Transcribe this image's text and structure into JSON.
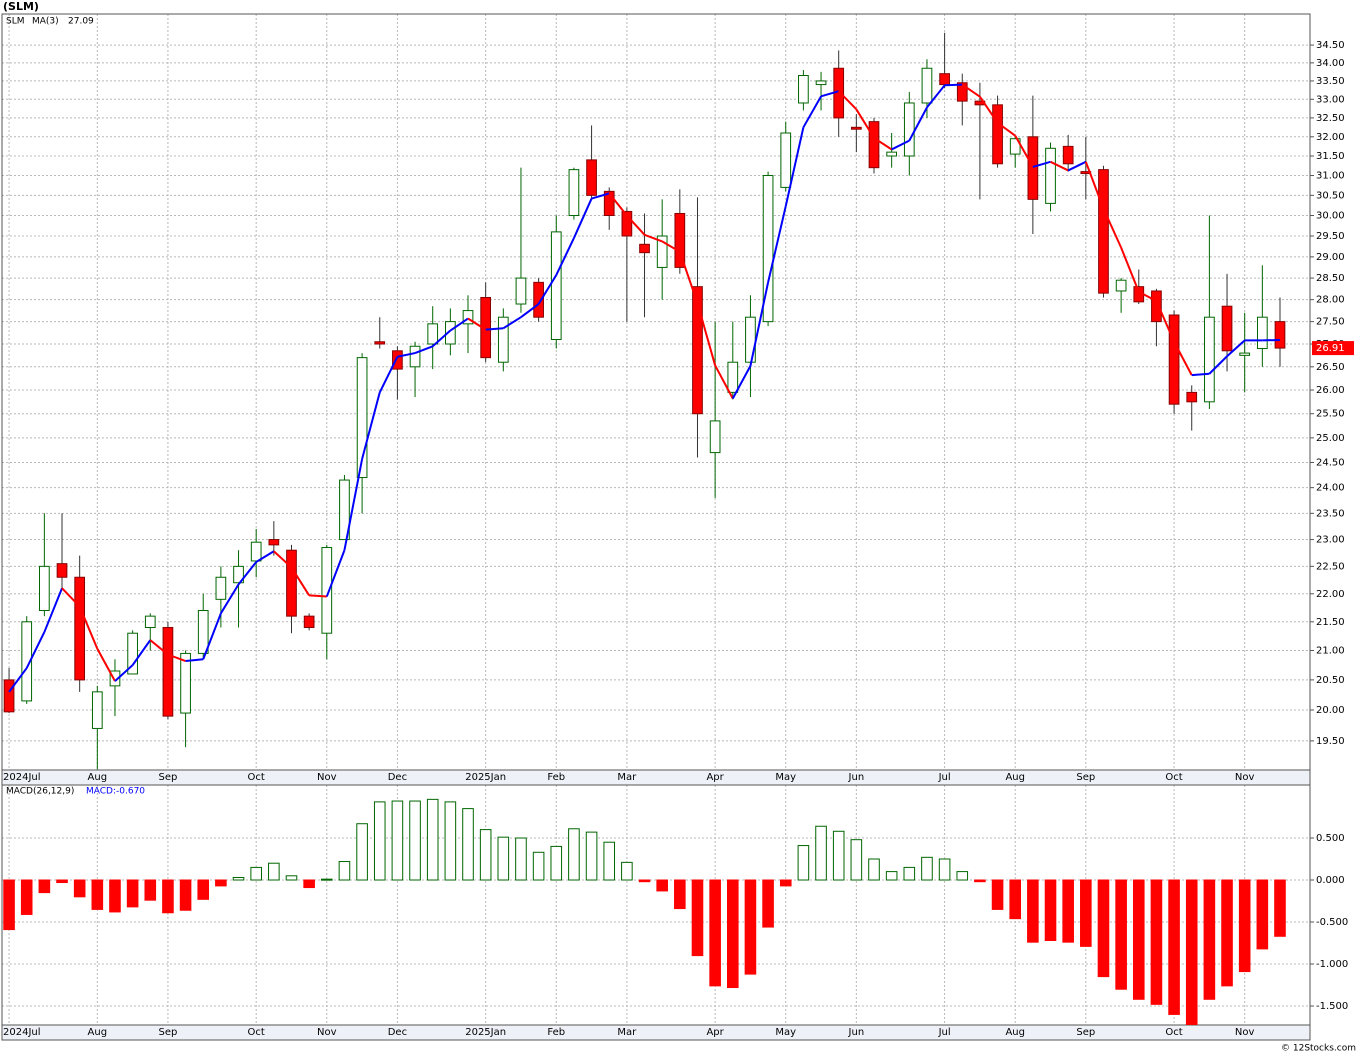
{
  "chart_data": [
    {
      "type": "candlestick",
      "title": "(SLM)",
      "log_scale": true,
      "grid": true,
      "up_color": "#006600",
      "down_color": "#ff0000",
      "xlim": [
        -0.4,
        73.7
      ],
      "xticks": [
        {
          "value": 0,
          "label": "2024Jul"
        },
        {
          "value": 5,
          "label": "Aug"
        },
        {
          "value": 9,
          "label": "Sep"
        },
        {
          "value": 14,
          "label": "Oct"
        },
        {
          "value": 18,
          "label": "Nov"
        },
        {
          "value": 22,
          "label": "Dec"
        },
        {
          "value": 27,
          "label": "2025Jan"
        },
        {
          "value": 31,
          "label": "Feb"
        },
        {
          "value": 35,
          "label": "Mar"
        },
        {
          "value": 40,
          "label": "Apr"
        },
        {
          "value": 44,
          "label": "May"
        },
        {
          "value": 48,
          "label": "Jun"
        },
        {
          "value": 53,
          "label": "Jul"
        },
        {
          "value": 57,
          "label": "Aug"
        },
        {
          "value": 61,
          "label": "Sep"
        },
        {
          "value": 66,
          "label": "Oct"
        },
        {
          "value": 70,
          "label": "Nov"
        }
      ],
      "ylim": [
        19.04,
        35.39
      ],
      "yticks": [
        {
          "value": 19.5,
          "label": "19.50"
        },
        {
          "value": 20,
          "label": "20.00"
        },
        {
          "value": 20.5,
          "label": "20.50"
        },
        {
          "value": 21,
          "label": "21.00"
        },
        {
          "value": 21.5,
          "label": "21.50"
        },
        {
          "value": 22,
          "label": "22.00"
        },
        {
          "value": 22.5,
          "label": "22.50"
        },
        {
          "value": 23,
          "label": "23.00"
        },
        {
          "value": 23.5,
          "label": "23.50"
        },
        {
          "value": 24,
          "label": "24.00"
        },
        {
          "value": 24.5,
          "label": "24.50"
        },
        {
          "value": 25,
          "label": "25.00"
        },
        {
          "value": 25.5,
          "label": "25.50"
        },
        {
          "value": 26,
          "label": "26.00"
        },
        {
          "value": 26.5,
          "label": "26.50"
        },
        {
          "value": 27,
          "label": "27.00"
        },
        {
          "value": 27.5,
          "label": "27.50"
        },
        {
          "value": 28,
          "label": "28.00"
        },
        {
          "value": 28.5,
          "label": "28.50"
        },
        {
          "value": 29,
          "label": "29.00"
        },
        {
          "value": 29.5,
          "label": "29.50"
        },
        {
          "value": 30,
          "label": "30.00"
        },
        {
          "value": 30.5,
          "label": "30.50"
        },
        {
          "value": 31,
          "label": "31.00"
        },
        {
          "value": 31.5,
          "label": "31.50"
        },
        {
          "value": 32,
          "label": "32.00"
        },
        {
          "value": 32.5,
          "label": "32.50"
        },
        {
          "value": 33,
          "label": "33.00"
        },
        {
          "value": 33.5,
          "label": "33.50"
        },
        {
          "value": 34,
          "label": "34.00"
        },
        {
          "value": 34.5,
          "label": "34.50"
        }
      ],
      "series": [
        {
          "name": "SLM",
          "open": [
            20.5,
            20.15,
            21.7,
            22.55,
            22.3,
            19.7,
            20.4,
            20.6,
            21.4,
            21.4,
            19.95,
            20.95,
            21.9,
            22.2,
            22.6,
            23.0,
            22.8,
            21.6,
            21.3,
            23.0,
            24.2,
            27.05,
            26.85,
            26.5,
            27.0,
            27.0,
            27.45,
            28.05,
            26.6,
            27.9,
            28.4,
            27.1,
            30.0,
            31.4,
            30.6,
            30.1,
            29.3,
            28.75,
            30.05,
            28.3,
            24.7,
            25.95,
            26.6,
            27.5,
            30.7,
            32.9,
            33.4,
            33.85,
            32.25,
            32.4,
            31.5,
            31.5,
            32.9,
            33.7,
            33.45,
            32.95,
            32.85,
            31.55,
            32.0,
            30.3,
            31.75,
            31.1,
            31.15,
            28.2,
            28.3,
            28.2,
            27.65,
            25.95,
            25.75,
            27.85,
            26.75,
            26.9,
            27.5
          ],
          "high": [
            20.7,
            21.6,
            23.5,
            23.5,
            22.7,
            20.4,
            20.85,
            21.35,
            21.65,
            21.5,
            21.0,
            22.0,
            22.5,
            22.8,
            23.2,
            23.35,
            22.9,
            21.65,
            22.9,
            24.25,
            26.8,
            27.6,
            26.95,
            27.05,
            27.85,
            27.8,
            28.1,
            28.4,
            27.8,
            31.2,
            28.5,
            30.0,
            31.2,
            32.3,
            30.7,
            30.2,
            30.05,
            30.4,
            30.65,
            30.45,
            27.5,
            27.5,
            28.1,
            31.1,
            32.4,
            33.8,
            33.75,
            34.35,
            32.6,
            32.5,
            32.1,
            33.2,
            34.1,
            34.85,
            33.7,
            33.45,
            33.1,
            32.0,
            33.1,
            31.85,
            32.05,
            32.0,
            31.25,
            28.5,
            28.7,
            28.25,
            27.75,
            26.1,
            30.0,
            28.6,
            27.7,
            28.8,
            28.05
          ],
          "low": [
            19.95,
            20.1,
            21.6,
            22.1,
            20.3,
            19.05,
            19.9,
            20.6,
            21.0,
            19.85,
            19.4,
            20.85,
            21.4,
            21.4,
            22.3,
            22.7,
            21.3,
            21.35,
            20.85,
            23.0,
            23.5,
            26.9,
            25.8,
            25.85,
            26.45,
            26.75,
            26.8,
            26.6,
            26.4,
            27.7,
            27.5,
            26.9,
            29.9,
            30.4,
            29.65,
            27.5,
            27.6,
            28.0,
            28.6,
            24.6,
            23.8,
            25.8,
            25.85,
            27.4,
            30.6,
            32.7,
            32.7,
            32.0,
            31.6,
            31.05,
            31.2,
            31.0,
            32.5,
            33.3,
            32.3,
            30.4,
            31.2,
            31.2,
            29.55,
            30.1,
            31.1,
            30.4,
            28.05,
            27.7,
            27.9,
            26.95,
            25.5,
            25.15,
            25.6,
            26.4,
            25.95,
            26.5,
            26.5
          ],
          "close": [
            19.97,
            21.5,
            22.5,
            22.3,
            20.5,
            20.3,
            20.65,
            21.3,
            21.6,
            19.9,
            20.95,
            21.7,
            22.3,
            22.5,
            22.95,
            22.9,
            21.6,
            21.4,
            22.85,
            24.15,
            26.7,
            27.0,
            26.45,
            26.95,
            27.45,
            27.5,
            27.75,
            26.7,
            27.6,
            28.5,
            27.6,
            29.6,
            31.15,
            30.5,
            30.0,
            29.5,
            29.1,
            29.5,
            28.75,
            25.5,
            25.35,
            26.6,
            27.6,
            31.0,
            32.1,
            33.65,
            33.5,
            32.5,
            32.2,
            31.2,
            31.6,
            32.9,
            33.85,
            33.4,
            32.95,
            32.85,
            31.3,
            31.95,
            30.4,
            31.7,
            31.3,
            31.05,
            28.15,
            28.45,
            27.95,
            27.5,
            25.7,
            25.75,
            27.6,
            26.85,
            26.8,
            27.6,
            26.91
          ]
        },
        {
          "name": "MA(3)",
          "up_color": "#0000ff",
          "down_color": "#ff0000",
          "values": [
            20.3,
            20.7,
            21.32,
            22.1,
            21.77,
            21.03,
            20.48,
            20.75,
            21.18,
            20.93,
            20.82,
            20.85,
            21.65,
            22.17,
            22.58,
            22.78,
            22.48,
            21.97,
            21.95,
            22.8,
            24.57,
            25.95,
            26.72,
            26.8,
            26.95,
            27.3,
            27.57,
            27.32,
            27.35,
            27.6,
            27.9,
            28.57,
            29.45,
            30.42,
            30.55,
            30.0,
            29.53,
            29.37,
            29.12,
            27.92,
            26.53,
            25.82,
            26.52,
            28.4,
            30.23,
            32.25,
            33.08,
            33.22,
            32.73,
            31.97,
            31.67,
            31.9,
            32.78,
            33.38,
            33.4,
            33.07,
            32.37,
            32.03,
            31.22,
            31.35,
            31.13,
            31.35,
            30.17,
            29.22,
            28.18,
            27.97,
            27.05,
            26.32,
            26.35,
            26.73,
            27.08,
            27.08,
            27.09
          ]
        }
      ]
    },
    {
      "type": "bar",
      "title": "MACD(26,12,9)",
      "subtitle": "MACD:-0.670",
      "grid": true,
      "pos_color": "#006600",
      "neg_color": "#ff0000",
      "xlim": [
        -0.4,
        73.7
      ],
      "xticks": [
        {
          "value": 0,
          "label": "2024Jul"
        },
        {
          "value": 5,
          "label": "Aug"
        },
        {
          "value": 9,
          "label": "Sep"
        },
        {
          "value": 14,
          "label": "Oct"
        },
        {
          "value": 18,
          "label": "Nov"
        },
        {
          "value": 22,
          "label": "Dec"
        },
        {
          "value": 27,
          "label": "2025Jan"
        },
        {
          "value": 31,
          "label": "Feb"
        },
        {
          "value": 35,
          "label": "Mar"
        },
        {
          "value": 40,
          "label": "Apr"
        },
        {
          "value": 44,
          "label": "May"
        },
        {
          "value": 48,
          "label": "Jun"
        },
        {
          "value": 53,
          "label": "Jul"
        },
        {
          "value": 57,
          "label": "Aug"
        },
        {
          "value": 61,
          "label": "Sep"
        },
        {
          "value": 66,
          "label": "Oct"
        },
        {
          "value": 70,
          "label": "Nov"
        }
      ],
      "ylim": [
        -1.726,
        1.131
      ],
      "yticks": [
        {
          "value": -1.5,
          "label": "-1.500"
        },
        {
          "value": -1,
          "label": "-1.000"
        },
        {
          "value": -0.5,
          "label": "-0.500"
        },
        {
          "value": 0,
          "label": "0.000"
        },
        {
          "value": 0.5,
          "label": "0.500"
        }
      ],
      "values": [
        -0.59,
        -0.41,
        -0.15,
        -0.03,
        -0.2,
        -0.35,
        -0.38,
        -0.32,
        -0.24,
        -0.39,
        -0.36,
        -0.23,
        -0.07,
        0.03,
        0.15,
        0.2,
        0.05,
        -0.09,
        0.01,
        0.22,
        0.67,
        0.93,
        0.94,
        0.94,
        0.96,
        0.93,
        0.85,
        0.6,
        0.51,
        0.5,
        0.33,
        0.4,
        0.61,
        0.57,
        0.45,
        0.21,
        -0.02,
        -0.13,
        -0.34,
        -0.9,
        -1.26,
        -1.28,
        -1.12,
        -0.56,
        -0.07,
        0.41,
        0.64,
        0.58,
        0.48,
        0.25,
        0.1,
        0.15,
        0.27,
        0.25,
        0.1,
        -0.02,
        -0.35,
        -0.46,
        -0.74,
        -0.72,
        -0.74,
        -0.79,
        -1.15,
        -1.3,
        -1.42,
        -1.48,
        -1.6,
        -1.72,
        -1.42,
        -1.26,
        -1.09,
        -0.82,
        -0.67
      ]
    }
  ],
  "credit": "© 12Stocks.com"
}
